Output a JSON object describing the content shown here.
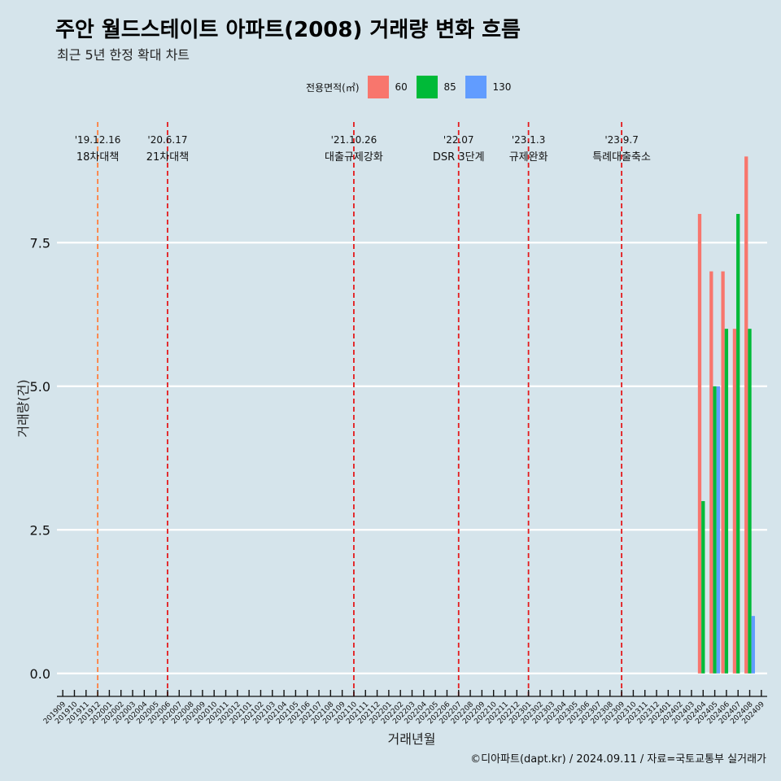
{
  "header": {
    "title": "주안 월드스테이트 아파트(2008) 거래량 변화 흐름",
    "subtitle": "최근 5년 한정 확대 차트"
  },
  "caption": "©디아파트(dapt.kr) / 2024.09.11 / 자료=국토교통부 실거래가",
  "legend": {
    "title": "전용면적(㎡)",
    "items": [
      {
        "label": "60",
        "color": "#f8766d"
      },
      {
        "label": "85",
        "color": "#00ba38"
      },
      {
        "label": "130",
        "color": "#619cff"
      }
    ]
  },
  "chart_data": {
    "type": "bar",
    "xlabel": "거래년월",
    "ylabel": "거래량(건)",
    "ylim": [
      -0.4,
      9.6
    ],
    "yticks": [
      0.0,
      2.5,
      5.0,
      7.5
    ],
    "ytick_labels": [
      "0.0",
      "2.5",
      "5.0",
      "7.5"
    ],
    "grid": true,
    "legend_position": "top",
    "categories": [
      "201909",
      "201910",
      "201911",
      "201912",
      "202001",
      "202002",
      "202003",
      "202004",
      "202005",
      "202006",
      "202007",
      "202008",
      "202009",
      "202010",
      "202011",
      "202012",
      "202101",
      "202102",
      "202103",
      "202104",
      "202105",
      "202106",
      "202107",
      "202108",
      "202109",
      "202110",
      "202111",
      "202112",
      "202201",
      "202202",
      "202203",
      "202204",
      "202205",
      "202206",
      "202207",
      "202208",
      "202209",
      "202210",
      "202211",
      "202212",
      "202301",
      "202302",
      "202303",
      "202304",
      "202305",
      "202306",
      "202307",
      "202308",
      "202309",
      "202310",
      "202311",
      "202312",
      "202401",
      "202402",
      "202403",
      "202404",
      "202405",
      "202406",
      "202407",
      "202408",
      "202409"
    ],
    "series": [
      {
        "name": "60",
        "color": "#f8766d",
        "points": [
          [
            "202404",
            8
          ],
          [
            "202405",
            7
          ],
          [
            "202406",
            7
          ],
          [
            "202407",
            6
          ],
          [
            "202408",
            9
          ]
        ]
      },
      {
        "name": "85",
        "color": "#00ba38",
        "points": [
          [
            "202404",
            3
          ],
          [
            "202405",
            5
          ],
          [
            "202406",
            6
          ],
          [
            "202407",
            8
          ],
          [
            "202408",
            6
          ]
        ]
      },
      {
        "name": "130",
        "color": "#619cff",
        "points": [
          [
            "202405",
            5
          ],
          [
            "202408",
            1
          ]
        ]
      }
    ],
    "events": [
      {
        "month": "201912",
        "date": "'19.12.16",
        "label": "18차대책",
        "color": "#ff7f3f"
      },
      {
        "month": "202006",
        "date": "'20.6.17",
        "label": "21차대책",
        "color": "#e41a1c"
      },
      {
        "month": "202110",
        "date": "'21.10.26",
        "label": "대출규제강화",
        "color": "#e41a1c"
      },
      {
        "month": "202207",
        "date": "'22.07",
        "label": "DSR 3단계",
        "color": "#e41a1c"
      },
      {
        "month": "202301",
        "date": "'23.1.3",
        "label": "규제완화",
        "color": "#e41a1c"
      },
      {
        "month": "202309",
        "date": "'23.9.7",
        "label": "특례대출축소",
        "color": "#e41a1c"
      }
    ]
  }
}
